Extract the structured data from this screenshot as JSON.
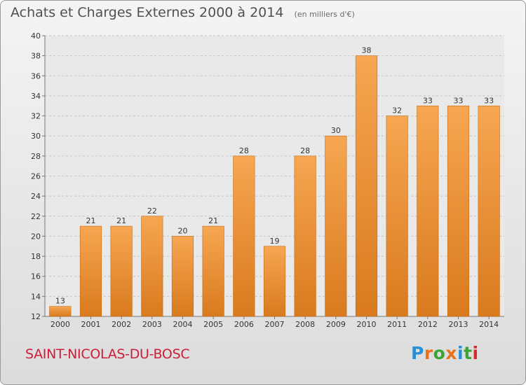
{
  "header": {
    "title": "Achats et Charges Externes 2000 à 2014",
    "unit_note": "(en milliers d'€)"
  },
  "commune": "SAINT-NICOLAS-DU-BOSC",
  "logo": {
    "text": "Proxiti",
    "letters": [
      {
        "ch": "P",
        "color": "#2a8fd3"
      },
      {
        "ch": "r",
        "color": "#e8731c"
      },
      {
        "ch": "o",
        "color": "#3aa536"
      },
      {
        "ch": "x",
        "color": "#e8731c"
      },
      {
        "ch": "i",
        "color": "#2a8fd3"
      },
      {
        "ch": "t",
        "color": "#3aa536"
      },
      {
        "ch": "i",
        "color": "#d92a2a"
      }
    ]
  },
  "colors": {
    "bar_light": "#f7a652",
    "bar_dark": "#d97a1e",
    "grid": "#c4c4c4",
    "axis_text": "#333333",
    "label_text": "#333333"
  },
  "chart_data": {
    "type": "bar",
    "title": "Achats et Charges Externes 2000 à 2014",
    "subtitle": "(en milliers d'€)",
    "xlabel": "",
    "ylabel": "",
    "categories": [
      "2000",
      "2001",
      "2002",
      "2003",
      "2004",
      "2005",
      "2006",
      "2007",
      "2008",
      "2009",
      "2010",
      "2011",
      "2012",
      "2013",
      "2014"
    ],
    "values": [
      13,
      21,
      21,
      22,
      20,
      21,
      28,
      19,
      28,
      30,
      38,
      32,
      33,
      33,
      33
    ],
    "ylim": [
      12,
      40
    ],
    "yticks": [
      12,
      14,
      16,
      18,
      20,
      22,
      24,
      26,
      28,
      30,
      32,
      34,
      36,
      38,
      40
    ],
    "grid": true,
    "legend": "none"
  }
}
